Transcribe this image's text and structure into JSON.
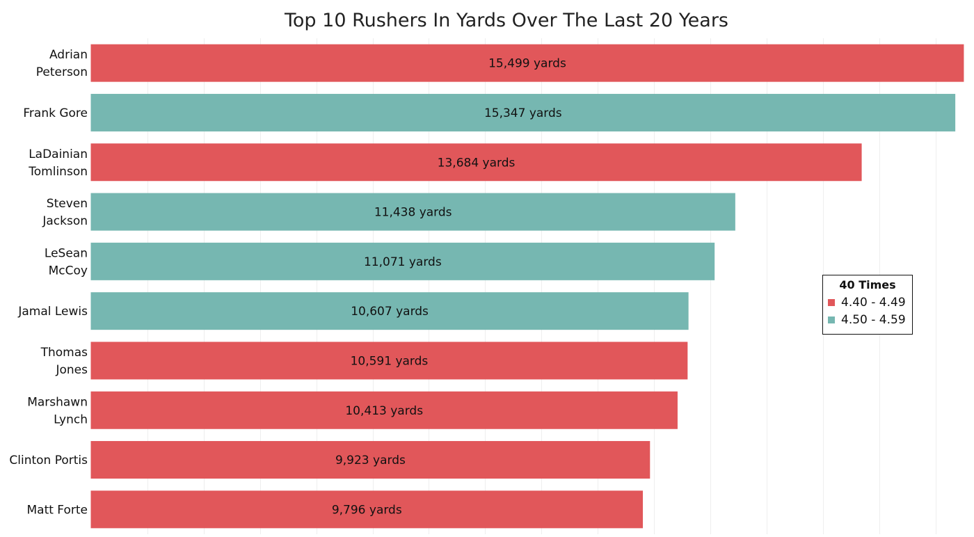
{
  "chart_data": {
    "type": "bar",
    "orientation": "horizontal",
    "title": "Top 10 Rushers In Yards Over The Last 20 Years",
    "xlabel": "",
    "ylabel": "",
    "xlim": [
      0,
      15500
    ],
    "grid": true,
    "value_suffix": " yards",
    "categories": [
      "Adrian Peterson",
      "Frank Gore",
      "LaDainian Tomlinson",
      "Steven Jackson",
      "LeSean McCoy",
      "Jamal Lewis",
      "Thomas Jones",
      "Marshawn Lynch",
      "Clinton Portis",
      "Matt Forte"
    ],
    "category_label_lines": [
      [
        "Adrian",
        "Peterson"
      ],
      [
        "Frank Gore"
      ],
      [
        "LaDainian",
        "Tomlinson"
      ],
      [
        "Steven",
        "Jackson"
      ],
      [
        "LeSean",
        "McCoy"
      ],
      [
        "Jamal Lewis"
      ],
      [
        "Thomas",
        "Jones"
      ],
      [
        "Marshawn",
        "Lynch"
      ],
      [
        "Clinton Portis"
      ],
      [
        "Matt Forte"
      ]
    ],
    "values": [
      15499,
      15347,
      13684,
      11438,
      11071,
      10607,
      10591,
      10413,
      9923,
      9796
    ],
    "value_labels": [
      "15,499 yards",
      "15,347 yards",
      "13,684 yards",
      "11,438 yards",
      "11,071 yards",
      "10,607 yards",
      "10,591 yards",
      "10,413 yards",
      "9,923 yards",
      "9,796 yards"
    ],
    "groups": [
      "4.40 - 4.49",
      "4.50 - 4.59",
      "4.40 - 4.49",
      "4.50 - 4.59",
      "4.50 - 4.59",
      "4.50 - 4.59",
      "4.40 - 4.49",
      "4.40 - 4.49",
      "4.40 - 4.49",
      "4.40 - 4.49"
    ],
    "legend": {
      "title": "40 Times",
      "placement": "right",
      "entries": [
        {
          "label": "4.40 - 4.49",
          "color": "#e1575a"
        },
        {
          "label": "4.50 - 4.59",
          "color": "#76b7b1"
        }
      ]
    }
  }
}
